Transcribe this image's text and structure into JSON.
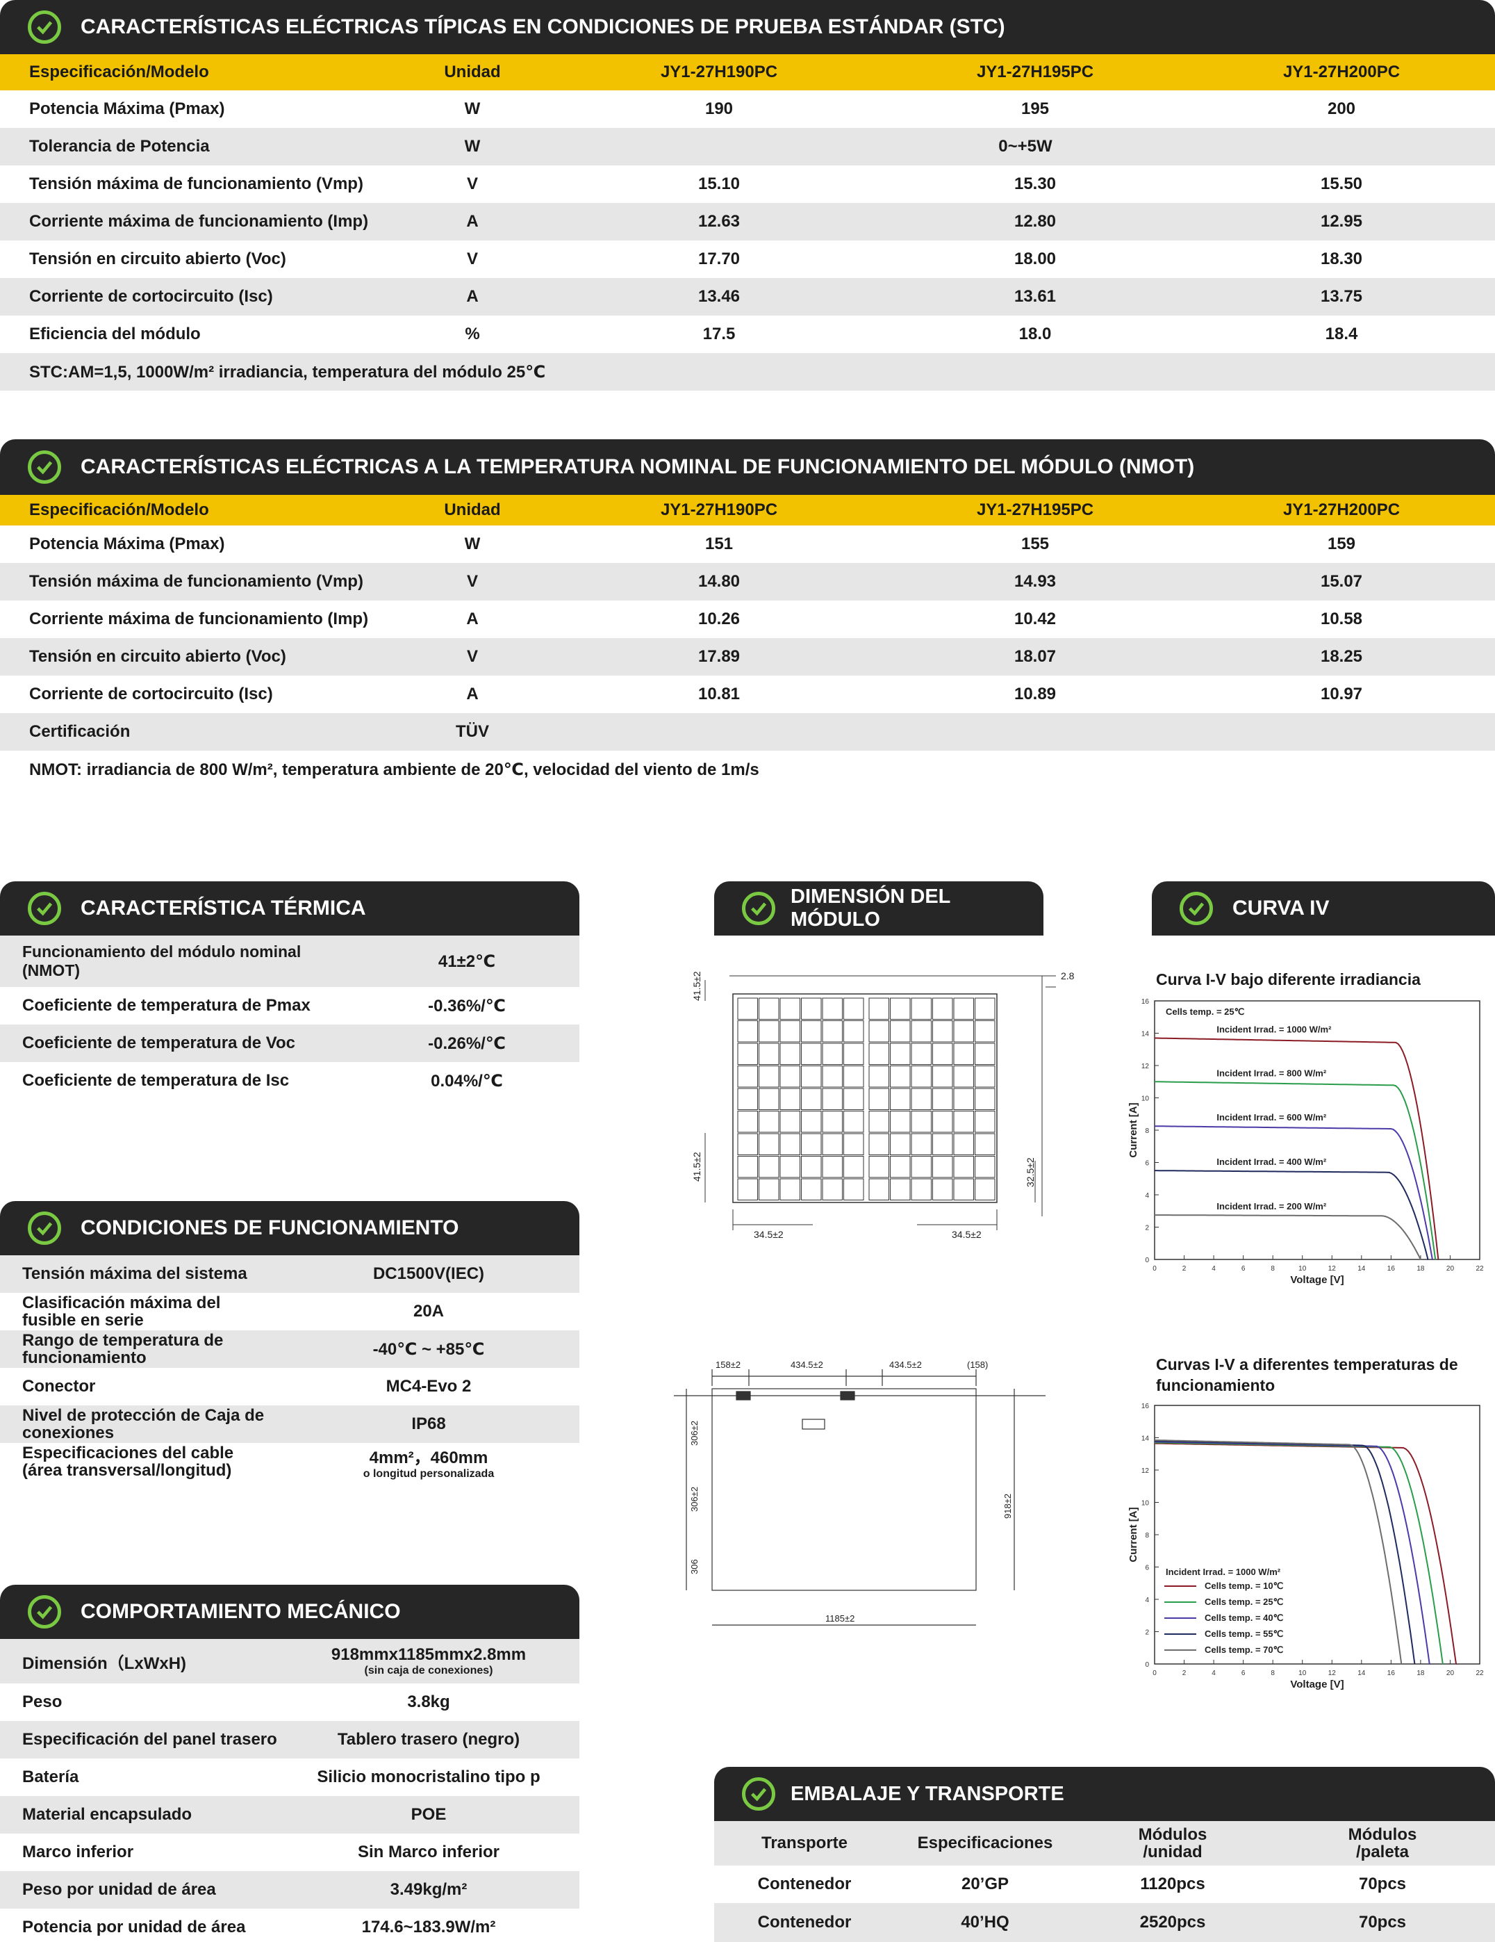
{
  "stc": {
    "title": "CARACTERÍSTICAS ELÉCTRICAS TÍPICAS EN CONDICIONES DE PRUEBA ESTÁNDAR (STC)",
    "header": [
      "Especificación/Modelo",
      "Unidad",
      "JY1-27H190PC",
      "JY1-27H195PC",
      "JY1-27H200PC"
    ],
    "rows": [
      [
        "Potencia Máxima (Pmax)",
        "W",
        "190",
        "195",
        "200"
      ],
      [
        "Tolerancia de Potencia",
        "W",
        "0~+5W"
      ],
      [
        "Tensión máxima de funcionamiento (Vmp)",
        "V",
        "15.10",
        "15.30",
        "15.50"
      ],
      [
        "Corriente máxima de funcionamiento (Imp)",
        "A",
        "12.63",
        "12.80",
        "12.95"
      ],
      [
        "Tensión en circuito abierto (Voc)",
        "V",
        "17.70",
        "18.00",
        "18.30"
      ],
      [
        "Corriente de cortocircuito (Isc)",
        "A",
        "13.46",
        "13.61",
        "13.75"
      ],
      [
        "Eficiencia del módulo",
        "%",
        "17.5",
        "18.0",
        "18.4"
      ]
    ],
    "note": "STC:AM=1,5, 1000W/m² irradiancia, temperatura del módulo 25℃"
  },
  "nmot": {
    "title": "CARACTERÍSTICAS ELÉCTRICAS A LA TEMPERATURA NOMINAL DE FUNCIONAMIENTO DEL MÓDULO (NMOT)",
    "header": [
      "Especificación/Modelo",
      "Unidad",
      "JY1-27H190PC",
      "JY1-27H195PC",
      "JY1-27H200PC"
    ],
    "rows": [
      [
        "Potencia Máxima (Pmax)",
        "W",
        "151",
        "155",
        "159"
      ],
      [
        "Tensión máxima de funcionamiento (Vmp)",
        "V",
        "14.80",
        "14.93",
        "15.07"
      ],
      [
        "Corriente máxima de funcionamiento (Imp)",
        "A",
        "10.26",
        "10.42",
        "10.58"
      ],
      [
        "Tensión en circuito abierto (Voc)",
        "V",
        "17.89",
        "18.07",
        "18.25"
      ],
      [
        "Corriente de cortocircuito (Isc)",
        "A",
        "10.81",
        "10.89",
        "10.97"
      ],
      [
        "Certificación",
        "TÜV"
      ]
    ],
    "note": "NMOT: irradiancia de 800 W/m², temperatura ambiente de 20℃, velocidad del viento de 1m/s"
  },
  "thermal": {
    "title": "CARACTERÍSTICA TÉRMICA",
    "rows": [
      [
        "Funcionamiento del módulo nominal (NMOT)",
        "41±2℃"
      ],
      [
        "Coeficiente de temperatura de Pmax",
        "-0.36%/℃"
      ],
      [
        "Coeficiente de temperatura de Voc",
        "-0.26%/℃"
      ],
      [
        "Coeficiente de temperatura de Isc",
        "0.04%/℃"
      ]
    ]
  },
  "operating": {
    "title": "CONDICIONES DE FUNCIONAMIENTO",
    "rows": [
      [
        "Tensión máxima del sistema",
        "DC1500V(IEC)"
      ],
      [
        "Clasificación máxima del fusible en serie",
        "20A"
      ],
      [
        "Rango de temperatura de funcionamiento",
        "-40℃ ~ +85℃"
      ],
      [
        "Conector",
        "MC4-Evo 2"
      ],
      [
        "Nivel de protección de Caja de conexiones",
        "IP68"
      ],
      [
        "Especificaciones del cable (área transversal/longitud)",
        "4mm²，460mm"
      ]
    ],
    "cable_sub": "o longitud personalizada"
  },
  "mechanical": {
    "title": "COMPORTAMIENTO MECÁNICO",
    "rows": [
      [
        "Dimensión（LxWxH)",
        "918mmx1185mmx2.8mm"
      ],
      [
        "Peso",
        "3.8kg"
      ],
      [
        "Especificación del panel trasero",
        "Tablero trasero (negro)"
      ],
      [
        "Batería",
        "Silicio monocristalino tipo p"
      ],
      [
        "Material encapsulado",
        "POE"
      ],
      [
        "Marco inferior",
        "Sin Marco inferior"
      ],
      [
        "Peso por unidad de área",
        "3.49kg/m²"
      ],
      [
        "Potencia por unidad de área",
        "174.6~183.9W/m²"
      ]
    ],
    "dim_sub": "(sin caja de conexiones)"
  },
  "dimension": {
    "title": "DIMENSIÓN DEL MÓDULO",
    "top_labels": {
      "thickness": "2.8",
      "top_margin": "41.5±2",
      "bottom_margin": "41.5±2",
      "right_margin": "32.5±2",
      "left_gap": "34.5±2",
      "right_gap": "34.5±2"
    },
    "back_labels": {
      "a": "158±2",
      "b": "434.5±2",
      "c": "434.5±2",
      "d": "(158)",
      "e": "306±2",
      "f": "306±2",
      "g": "306",
      "h": "918±2",
      "w": "1185±2"
    }
  },
  "iv": {
    "title": "CURVA IV",
    "chart1_title": "Curva I-V bajo diferente irradiancia",
    "chart2_title": "Curvas I-V a diferentes temperaturas de funcionamiento"
  },
  "chart_data": [
    {
      "type": "line",
      "title": "Curva I-V bajo diferente irradiancia",
      "xlabel": "Voltage [V]",
      "ylabel": "Current [A]",
      "xlim": [
        0,
        22
      ],
      "ylim": [
        0,
        16
      ],
      "xticks": [
        "0",
        "2",
        "4",
        "6",
        "8",
        "10",
        "12",
        "14",
        "16",
        "18",
        "20",
        "22"
      ],
      "yticks": [
        "0",
        "2",
        "4",
        "6",
        "8",
        "10",
        "12",
        "14",
        "16"
      ],
      "annotation": "Cells temp. = 25℃",
      "series": [
        {
          "name": "Incident Irrad. = 1000 W/m²",
          "color": "#8b1c25",
          "isc": 13.7,
          "voc": 19.2,
          "knee": 16.3
        },
        {
          "name": "Incident Irrad. = 800 W/m²",
          "color": "#2a9d4a",
          "isc": 11.0,
          "voc": 19.0,
          "knee": 16.2
        },
        {
          "name": "Incident Irrad. = 600 W/m²",
          "color": "#4b3aa8",
          "isc": 8.25,
          "voc": 18.8,
          "knee": 16.0
        },
        {
          "name": "Incident Irrad. = 400 W/m²",
          "color": "#1f2a5e",
          "isc": 5.5,
          "voc": 18.5,
          "knee": 15.8
        },
        {
          "name": "Incident Irrad. = 200 W/m²",
          "color": "#6d6d6d",
          "isc": 2.75,
          "voc": 18.0,
          "knee": 15.4
        }
      ]
    },
    {
      "type": "line",
      "title": "Curvas I-V a diferentes temperaturas de funcionamiento",
      "xlabel": "Voltage [V]",
      "ylabel": "Current [A]",
      "xlim": [
        0,
        22
      ],
      "ylim": [
        0,
        16
      ],
      "xticks": [
        "0",
        "2",
        "4",
        "6",
        "8",
        "10",
        "12",
        "14",
        "16",
        "18",
        "20",
        "22"
      ],
      "yticks": [
        "0",
        "2",
        "4",
        "6",
        "8",
        "10",
        "12",
        "14",
        "16"
      ],
      "annotation": "Incident Irrad. = 1000 W/m²",
      "series": [
        {
          "name": "Cells temp. = 10℃",
          "color": "#8b1c25",
          "isc": 13.65,
          "voc": 20.4,
          "knee": 16.8
        },
        {
          "name": "Cells temp. = 25℃",
          "color": "#2a9d4a",
          "isc": 13.7,
          "voc": 19.5,
          "knee": 15.9
        },
        {
          "name": "Cells temp. = 40℃",
          "color": "#4b3aa8",
          "isc": 13.75,
          "voc": 18.6,
          "knee": 15.0
        },
        {
          "name": "Cells temp. = 55℃",
          "color": "#1f2a5e",
          "isc": 13.8,
          "voc": 17.6,
          "knee": 14.1
        },
        {
          "name": "Cells temp. = 70℃",
          "color": "#6d6d6d",
          "isc": 13.85,
          "voc": 16.7,
          "knee": 13.2
        }
      ]
    }
  ],
  "packaging": {
    "title": "EMBALAJE Y TRANSPORTE",
    "header": [
      "Transporte",
      "Especificaciones",
      "Módulos /unidad",
      "Módulos /paleta"
    ],
    "rows": [
      [
        "Contenedor",
        "20’GP",
        "1120pcs",
        "70pcs"
      ],
      [
        "Contenedor",
        "40’HQ",
        "2520pcs",
        "70pcs"
      ]
    ]
  }
}
